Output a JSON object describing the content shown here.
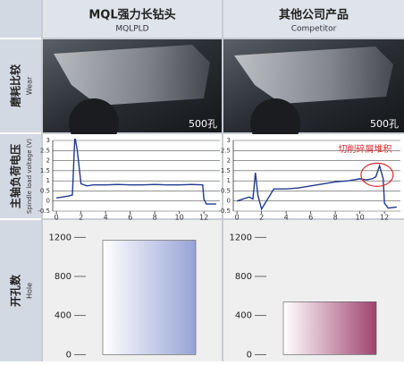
{
  "header": {
    "left": {
      "title": "MQL强力长钻头",
      "subtitle": "MQLPLD"
    },
    "right": {
      "title": "其他公司产品",
      "subtitle": "Competitor"
    }
  },
  "rows": [
    {
      "label": "磨耗比较",
      "sublabel": "Wear",
      "photo_labels": [
        "500孔",
        "500孔"
      ]
    },
    {
      "label": "主轴负荷电压",
      "sublabel": "Spindle load voltage (V)",
      "charts": [
        {
          "type": "line",
          "color": "#1f3a8f",
          "xlim": [
            -0.3,
            13.3
          ],
          "ylim": [
            -0.5,
            3
          ],
          "xticks": [
            0,
            2,
            4,
            6,
            8,
            10,
            12
          ],
          "yticks": [
            -0.5,
            0,
            0.5,
            1,
            1.5,
            2,
            2.5,
            3
          ],
          "grid": true,
          "x": [
            0,
            0.5,
            1,
            1.3,
            1.5,
            1.7,
            2,
            2.5,
            3,
            4,
            5,
            6,
            7,
            8,
            9,
            10,
            11,
            11.9,
            12,
            12.2,
            12.6,
            13
          ],
          "values": [
            0.15,
            0.2,
            0.25,
            0.3,
            3.2,
            2.5,
            0.85,
            0.75,
            0.8,
            0.8,
            0.82,
            0.8,
            0.8,
            0.82,
            0.8,
            0.8,
            0.82,
            0.8,
            0.1,
            -0.15,
            -0.15,
            -0.15
          ]
        },
        {
          "type": "line",
          "color": "#1f3a8f",
          "xlim": [
            -0.3,
            13.3
          ],
          "ylim": [
            -0.5,
            3
          ],
          "xticks": [
            0,
            2,
            4,
            6,
            8,
            10,
            12
          ],
          "yticks": [
            -0.5,
            0,
            0.5,
            1,
            1.5,
            2,
            2.5,
            3
          ],
          "grid": true,
          "annotation": "切削碎屑堆积",
          "x": [
            0,
            0.5,
            1,
            1.3,
            1.5,
            1.7,
            2,
            3,
            4,
            5,
            6,
            7,
            8,
            9,
            10,
            10.5,
            11,
            11.3,
            11.6,
            11.9,
            12,
            12.3,
            13
          ],
          "values": [
            0.0,
            0.1,
            0.2,
            0.1,
            1.4,
            0.3,
            -0.4,
            0.6,
            0.6,
            0.65,
            0.75,
            0.85,
            0.95,
            1.0,
            1.1,
            1.05,
            1.1,
            1.2,
            1.75,
            1.1,
            -0.1,
            -0.35,
            -0.3
          ]
        }
      ]
    },
    {
      "label": "开孔数",
      "sublabel": "Hole",
      "charts": [
        {
          "type": "bar",
          "values": [
            1170
          ],
          "color": "#97a3d6",
          "ylim": [
            -70,
            1340
          ],
          "yticks": [
            0,
            400,
            800,
            1200
          ]
        },
        {
          "type": "bar",
          "values": [
            540
          ],
          "color": "#a0446e",
          "ylim": [
            -70,
            1340
          ],
          "yticks": [
            0,
            400,
            800,
            1200
          ]
        }
      ]
    }
  ]
}
